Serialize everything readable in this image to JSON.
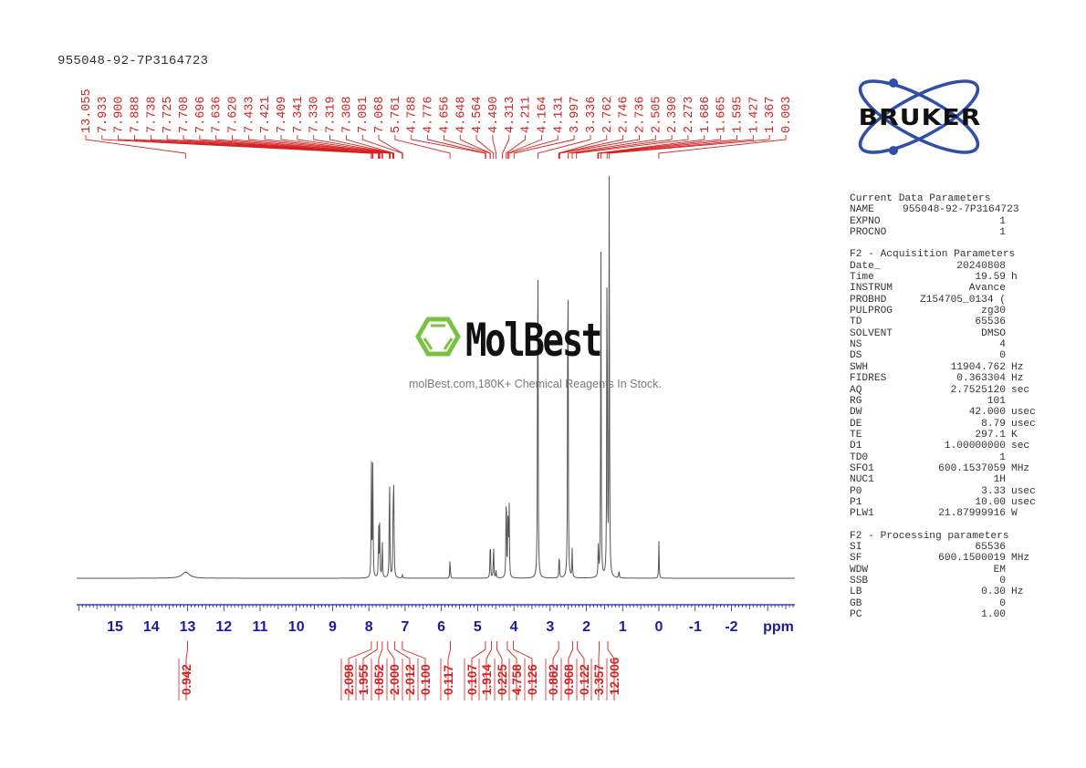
{
  "sample_title": "955048-92-7P3164723",
  "brand": {
    "logo_text": "BRUKER",
    "logo_color": "#2f4fa8"
  },
  "watermark": {
    "name": "MolBest",
    "tagline": "molBest.com,180K+ Chemical Reagents In Stock.",
    "hex_color": "#7cc242"
  },
  "parameters": {
    "current": {
      "title": "Current Data Parameters",
      "rows": [
        {
          "key": "NAME",
          "value": "955048-92-7P3164723",
          "unit": ""
        },
        {
          "key": "EXPNO",
          "value": "1",
          "unit": ""
        },
        {
          "key": "PROCNO",
          "value": "1",
          "unit": ""
        }
      ]
    },
    "acquisition": {
      "title": "F2 - Acquisition Parameters",
      "rows": [
        {
          "key": "Date_",
          "value": "20240808",
          "unit": ""
        },
        {
          "key": "Time",
          "value": "19.59",
          "unit": "h"
        },
        {
          "key": "INSTRUM",
          "value": "Avance",
          "unit": ""
        },
        {
          "key": "PROBHD",
          "value": "Z154705_0134 (",
          "unit": ""
        },
        {
          "key": "PULPROG",
          "value": "zg30",
          "unit": ""
        },
        {
          "key": "TD",
          "value": "65536",
          "unit": ""
        },
        {
          "key": "SOLVENT",
          "value": "DMSO",
          "unit": ""
        },
        {
          "key": "NS",
          "value": "4",
          "unit": ""
        },
        {
          "key": "DS",
          "value": "0",
          "unit": ""
        },
        {
          "key": "SWH",
          "value": "11904.762",
          "unit": "Hz"
        },
        {
          "key": "FIDRES",
          "value": "0.363304",
          "unit": "Hz"
        },
        {
          "key": "AQ",
          "value": "2.7525120",
          "unit": "sec"
        },
        {
          "key": "RG",
          "value": "101",
          "unit": ""
        },
        {
          "key": "DW",
          "value": "42.000",
          "unit": "usec"
        },
        {
          "key": "DE",
          "value": "8.79",
          "unit": "usec"
        },
        {
          "key": "TE",
          "value": "297.1",
          "unit": "K"
        },
        {
          "key": "D1",
          "value": "1.00000000",
          "unit": "sec"
        },
        {
          "key": "TD0",
          "value": "1",
          "unit": ""
        },
        {
          "key": "SFO1",
          "value": "600.1537059",
          "unit": "MHz"
        },
        {
          "key": "NUC1",
          "value": "1H",
          "unit": ""
        },
        {
          "key": "P0",
          "value": "3.33",
          "unit": "usec"
        },
        {
          "key": "P1",
          "value": "10.00",
          "unit": "usec"
        },
        {
          "key": "PLW1",
          "value": "21.87999916",
          "unit": "W"
        }
      ]
    },
    "processing": {
      "title": "F2 - Processing parameters",
      "rows": [
        {
          "key": "SI",
          "value": "65536",
          "unit": ""
        },
        {
          "key": "SF",
          "value": "600.1500019",
          "unit": "MHz"
        },
        {
          "key": "WDW",
          "value": "EM",
          "unit": ""
        },
        {
          "key": "SSB",
          "value": "0",
          "unit": ""
        },
        {
          "key": "LB",
          "value": "0.30",
          "unit": "Hz"
        },
        {
          "key": "GB",
          "value": "0",
          "unit": ""
        },
        {
          "key": "PC",
          "value": "1.00",
          "unit": ""
        }
      ]
    }
  },
  "colors": {
    "axis": "#1a1aa6",
    "peak_labels": "#d42020",
    "spectrum": "#555555"
  },
  "chart_data": {
    "type": "line",
    "title": "955048-92-7P3164723",
    "xlabel": "ppm",
    "ylabel": "",
    "x_reversed": true,
    "xlim": [
      16.0,
      -3.7
    ],
    "x_ticks": [
      "15",
      "14",
      "13",
      "12",
      "11",
      "10",
      "9",
      "8",
      "7",
      "6",
      "5",
      "4",
      "3",
      "2",
      "1",
      "0",
      "-1",
      "-2"
    ],
    "axis_unit_label": "ppm",
    "grid": false,
    "peak_labels": [
      "13.055",
      "7.933",
      "7.900",
      "7.888",
      "7.738",
      "7.725",
      "7.708",
      "7.696",
      "7.636",
      "7.620",
      "7.433",
      "7.421",
      "7.409",
      "7.341",
      "7.330",
      "7.319",
      "7.308",
      "7.081",
      "7.068",
      "5.761",
      "4.788",
      "4.776",
      "4.656",
      "4.648",
      "4.564",
      "4.490",
      "4.313",
      "4.211",
      "4.164",
      "4.131",
      "3.997",
      "3.336",
      "2.762",
      "2.746",
      "2.736",
      "2.505",
      "2.390",
      "2.273",
      "1.686",
      "1.665",
      "1.595",
      "1.427",
      "1.367",
      "0.003"
    ],
    "peaks": [
      {
        "ppm": 13.05,
        "height": 0.015
      },
      {
        "ppm": 7.93,
        "height": 0.28
      },
      {
        "ppm": 7.89,
        "height": 0.27
      },
      {
        "ppm": 7.73,
        "height": 0.13
      },
      {
        "ppm": 7.7,
        "height": 0.13
      },
      {
        "ppm": 7.63,
        "height": 0.1
      },
      {
        "ppm": 7.43,
        "height": 0.3
      },
      {
        "ppm": 7.33,
        "height": 0.21
      },
      {
        "ppm": 7.31,
        "height": 0.2
      },
      {
        "ppm": 7.07,
        "height": 0.01
      },
      {
        "ppm": 5.76,
        "height": 0.05
      },
      {
        "ppm": 4.65,
        "height": 0.11
      },
      {
        "ppm": 4.56,
        "height": 0.09
      },
      {
        "ppm": 4.49,
        "height": 0.02
      },
      {
        "ppm": 4.21,
        "height": 0.26
      },
      {
        "ppm": 4.16,
        "height": 0.2
      },
      {
        "ppm": 4.13,
        "height": 0.18
      },
      {
        "ppm": 3.34,
        "height": 1.0
      },
      {
        "ppm": 2.75,
        "height": 0.07
      },
      {
        "ppm": 2.51,
        "height": 1.0
      },
      {
        "ppm": 2.39,
        "height": 0.07
      },
      {
        "ppm": 1.67,
        "height": 0.09
      },
      {
        "ppm": 1.6,
        "height": 0.82
      },
      {
        "ppm": 1.43,
        "height": 0.92
      },
      {
        "ppm": 1.37,
        "height": 1.0
      },
      {
        "ppm": 1.1,
        "height": 0.02
      },
      {
        "ppm": 0.0,
        "height": 0.09
      }
    ],
    "integrals": [
      {
        "value": "0.942",
        "from": 13.5,
        "to": 12.5
      },
      {
        "value": "2.098",
        "from": 8.0,
        "to": 7.86
      },
      {
        "value": "1.955",
        "from": 7.86,
        "to": 7.68
      },
      {
        "value": "0.852",
        "from": 7.68,
        "to": 7.58
      },
      {
        "value": "2.000",
        "from": 7.58,
        "to": 7.38
      },
      {
        "value": "2.012",
        "from": 7.38,
        "to": 7.2
      },
      {
        "value": "0.100",
        "from": 7.15,
        "to": 7.0
      },
      {
        "value": "0.117",
        "from": 5.85,
        "to": 5.65
      },
      {
        "value": "0.107",
        "from": 4.85,
        "to": 4.72
      },
      {
        "value": "1.914",
        "from": 4.72,
        "to": 4.52
      },
      {
        "value": "0.225",
        "from": 4.52,
        "to": 4.42
      },
      {
        "value": "4.758",
        "from": 4.28,
        "to": 4.08
      },
      {
        "value": "0.126",
        "from": 4.08,
        "to": 3.95
      },
      {
        "value": "0.882",
        "from": 2.85,
        "to": 2.68
      },
      {
        "value": "0.968",
        "from": 2.45,
        "to": 2.3
      },
      {
        "value": "0.122",
        "from": 2.3,
        "to": 2.2
      },
      {
        "value": "3.357",
        "from": 1.75,
        "to": 1.55
      },
      {
        "value": "12.006",
        "from": 1.5,
        "to": 1.32
      }
    ]
  }
}
